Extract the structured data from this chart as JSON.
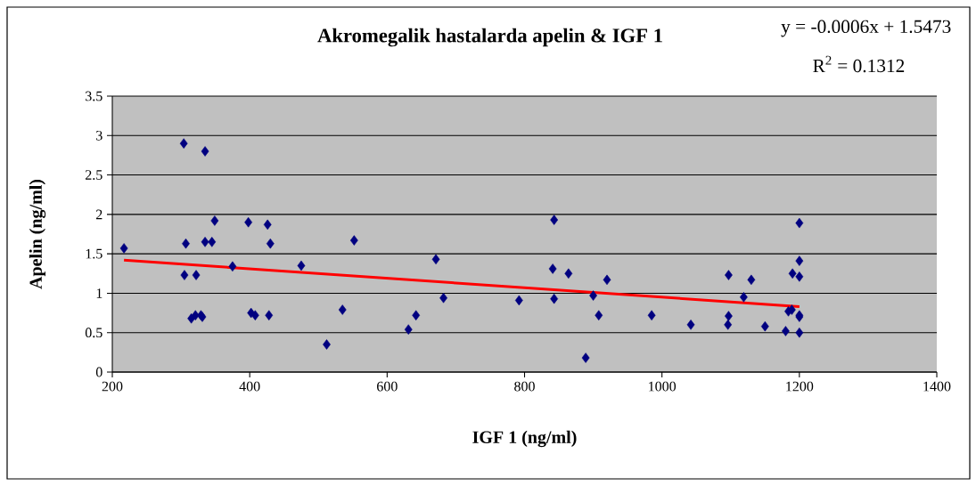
{
  "chart_data": {
    "type": "scatter",
    "title": "Akromegalik hastalarda apelin & IGF 1",
    "xlabel": "IGF 1 (ng/ml)",
    "ylabel": "Apelin (ng/ml)",
    "annotations": [
      "y = -0.0006x + 1.5473",
      "R$^{2}$ = 0.1312"
    ],
    "xlim": [
      200,
      1400
    ],
    "xticks": [
      200,
      400,
      600,
      800,
      1000,
      1200,
      1400
    ],
    "ylim": [
      0,
      3.5
    ],
    "yticks": [
      0,
      0.5,
      1,
      1.5,
      2,
      2.5,
      3,
      3.5
    ],
    "grid": "y",
    "series": [
      {
        "marker": "diamond",
        "color": "#000080",
        "x": [
          217,
          304,
          335,
          307,
          335,
          345,
          349,
          398,
          426,
          430,
          552,
          375,
          475,
          305,
          322,
          315,
          321,
          329,
          331,
          402,
          408,
          428,
          535,
          512,
          631,
          642,
          671,
          682,
          792,
          843,
          841,
          843,
          864,
          889,
          900,
          908,
          920,
          985,
          1042,
          1096,
          1097,
          1097,
          1119,
          1130,
          1150,
          1180,
          1184,
          1189,
          1190,
          1200,
          1200,
          1200,
          1200,
          1200,
          1200
        ],
        "values": [
          1.57,
          2.9,
          2.8,
          1.63,
          1.65,
          1.65,
          1.92,
          1.9,
          1.87,
          1.63,
          1.67,
          1.34,
          1.35,
          1.23,
          1.23,
          0.68,
          0.72,
          0.72,
          0.7,
          0.75,
          0.72,
          0.72,
          0.79,
          0.35,
          0.54,
          0.72,
          1.43,
          0.94,
          0.91,
          1.93,
          1.31,
          0.93,
          1.25,
          0.18,
          0.97,
          0.72,
          1.17,
          0.72,
          0.6,
          0.6,
          0.71,
          1.23,
          0.95,
          1.17,
          0.58,
          0.52,
          0.77,
          0.79,
          1.25,
          1.89,
          1.41,
          1.21,
          0.72,
          0.7,
          0.5
        ]
      },
      {
        "type": "line",
        "marker": "none",
        "color": "#ff0000",
        "x": [
          217,
          1200
        ],
        "values": [
          1.42,
          0.83
        ]
      }
    ]
  }
}
